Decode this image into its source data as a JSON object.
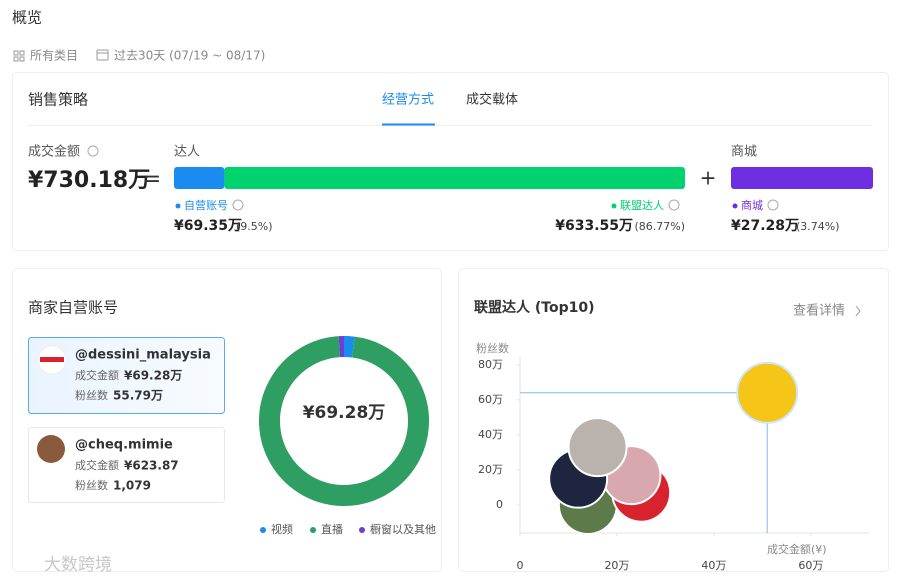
{
  "header": {
    "title": "概览",
    "filters": [
      "所有类目",
      "过去30天 (07/19 ~ 08/17)"
    ]
  },
  "sales_strategy": {
    "title": "销售策略",
    "tabs": [
      "经营方式",
      "成交载体"
    ],
    "total_label": "成交金额",
    "total": "¥730.18万",
    "equals": "=",
    "plus": "+",
    "groups": [
      "达人",
      "商城"
    ],
    "segments": [
      {
        "name": "自营账号",
        "amount": "¥69.35万",
        "share": 9.5,
        "share_label": "(9.5%)",
        "color": "#1a8cf0"
      },
      {
        "name": "联盟达人",
        "amount": "¥633.55万",
        "share": 86.77,
        "share_label": "(86.77%)",
        "color": "#00d26e"
      },
      {
        "name": "商城",
        "amount": "¥27.28万",
        "share": 3.74,
        "share_label": "(3.74%)",
        "color": "#6c2ee0"
      }
    ]
  },
  "accounts_panel": {
    "title": "商家自营账号",
    "accounts": [
      {
        "handle": "@dessini_malaysia",
        "gmv_label": "成交金额",
        "gmv": "¥69.28万",
        "fans_label": "粉丝数",
        "fans": "55.79万"
      },
      {
        "handle": "@cheq.mimie",
        "gmv_label": "成交金额",
        "gmv": "¥623.87",
        "fans_label": "粉丝数",
        "fans": "1,079"
      }
    ]
  },
  "chart_data": [
    {
      "type": "pie",
      "center_label": "¥69.28万",
      "categories": [
        "视频",
        "直播",
        "橱窗以及其他"
      ],
      "values": [
        2,
        97,
        1
      ],
      "colors": [
        "#1a8cf0",
        "#2e9e63",
        "#6c3fd6"
      ]
    },
    {
      "type": "scatter",
      "title": "联盟达人 (Top10)",
      "link": "查看详情",
      "ylabel": "粉丝数",
      "xlabel": "成交金额(¥)",
      "x": [
        51,
        16,
        12,
        23,
        25,
        14
      ],
      "values": [
        64,
        33,
        15,
        17,
        7,
        0
      ],
      "colors": [
        "#f5c518",
        "#b9b2ad",
        "#1d2540",
        "#d9a7b0",
        "#d8232f",
        "#5d7a4a"
      ],
      "xlim": [
        0,
        72
      ],
      "ylim": [
        -16,
        85
      ],
      "xticks": [
        0,
        {
          "value": 20,
          "label": "20万"
        },
        {
          "value": 40,
          "label": "40万"
        },
        {
          "value": 60,
          "label": "60万"
        }
      ],
      "yticks": [
        0,
        {
          "value": 20,
          "label": "20万"
        },
        {
          "value": 40,
          "label": "40万"
        },
        {
          "value": 60,
          "label": "60万"
        },
        {
          "value": 80,
          "label": "80万"
        }
      ]
    }
  ],
  "watermark": "大数跨境"
}
